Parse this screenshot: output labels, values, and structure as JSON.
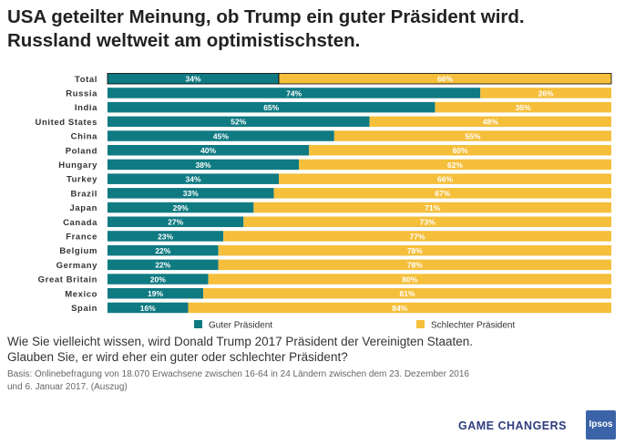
{
  "header": {
    "title_line1": "USA geteilter Meinung, ob Trump ein guter Präsident wird.",
    "title_line2": "Russland weltweit am optimistischsten."
  },
  "footer": {
    "question_line1": "Wie Sie vielleicht wissen, wird Donald Trump 2017 Präsident der Vereinigten Staaten.",
    "question_line2": "Glauben Sie, er wird eher ein guter oder schlechter Präsident?",
    "basis_line1": "Basis: Onlinebefragung von 18.070  Erwachsene zwischen 16-64 in 24 Ländern zwischen dem 23. Dezember 2016",
    "basis_line2": "und 6. Januar 2017.  (Auszug)",
    "brand": "GAME CHANGERS",
    "logo": "Ipsos"
  },
  "colors": {
    "good": "#0f7a82",
    "bad": "#f5bf3c",
    "total_outline": "#000000"
  },
  "chart_data": {
    "type": "bar",
    "orientation": "horizontal",
    "stacked": "percent",
    "categories": [
      "Total",
      "Russia",
      "India",
      "United States",
      "China",
      "Poland",
      "Hungary",
      "Turkey",
      "Brazil",
      "Japan",
      "Canada",
      "France",
      "Belgium",
      "Germany",
      "Great Britain",
      "Mexico",
      "Spain"
    ],
    "series": [
      {
        "name": "Guter Präsident",
        "values": [
          34,
          74,
          65,
          52,
          45,
          40,
          38,
          34,
          33,
          29,
          27,
          23,
          22,
          22,
          20,
          19,
          16
        ]
      },
      {
        "name": "Schlechter Präsident",
        "values": [
          66,
          26,
          35,
          48,
          55,
          60,
          62,
          66,
          67,
          71,
          73,
          77,
          78,
          78,
          80,
          81,
          84
        ]
      }
    ],
    "value_suffix": "%",
    "xlim": [
      0,
      100
    ],
    "legend_position": "bottom",
    "grid": false
  }
}
